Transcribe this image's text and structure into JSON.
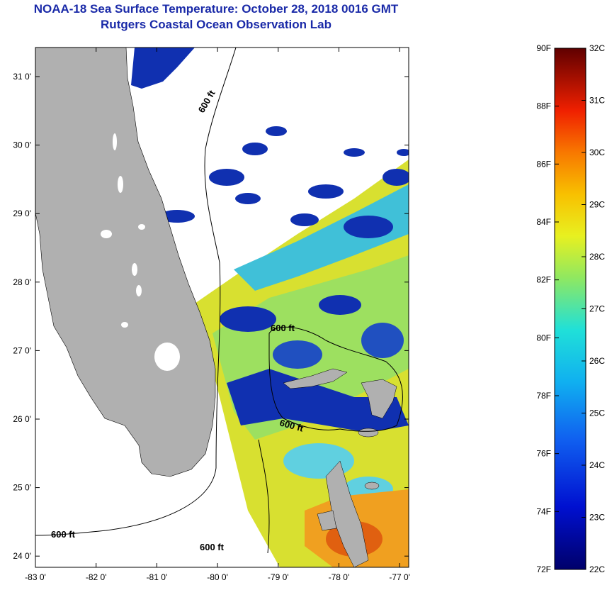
{
  "title": {
    "line1": "NOAA-18 Sea Surface Temperature:  October 28, 2018 0016 GMT",
    "line2": "Rutgers Coastal Ocean Observation Lab"
  },
  "axes": {
    "x_ticks": [
      "-83 0'",
      "-82 0'",
      "-81 0'",
      "-80 0'",
      "-79 0'",
      "-78 0'",
      "-77 0'"
    ],
    "y_ticks": [
      "31 0'",
      "30 0'",
      "29 0'",
      "28 0'",
      "27 0'",
      "26 0'",
      "25 0'",
      "24 0'"
    ]
  },
  "contour_label": "600 ft",
  "colorbar": {
    "f_labels": [
      "90F",
      "88F",
      "86F",
      "84F",
      "82F",
      "80F",
      "78F",
      "76F",
      "74F",
      "72F"
    ],
    "c_labels": [
      "32C",
      "31C",
      "30C",
      "29C",
      "28C",
      "27C",
      "26C",
      "25C",
      "24C",
      "23C",
      "22C"
    ],
    "range_f": [
      72,
      90
    ],
    "range_c": [
      22,
      32
    ]
  },
  "colors": {
    "title": "#1a2aa8",
    "land": "#b0b0b0",
    "cold": "#0a1aa0",
    "warm": "#d8e030"
  }
}
